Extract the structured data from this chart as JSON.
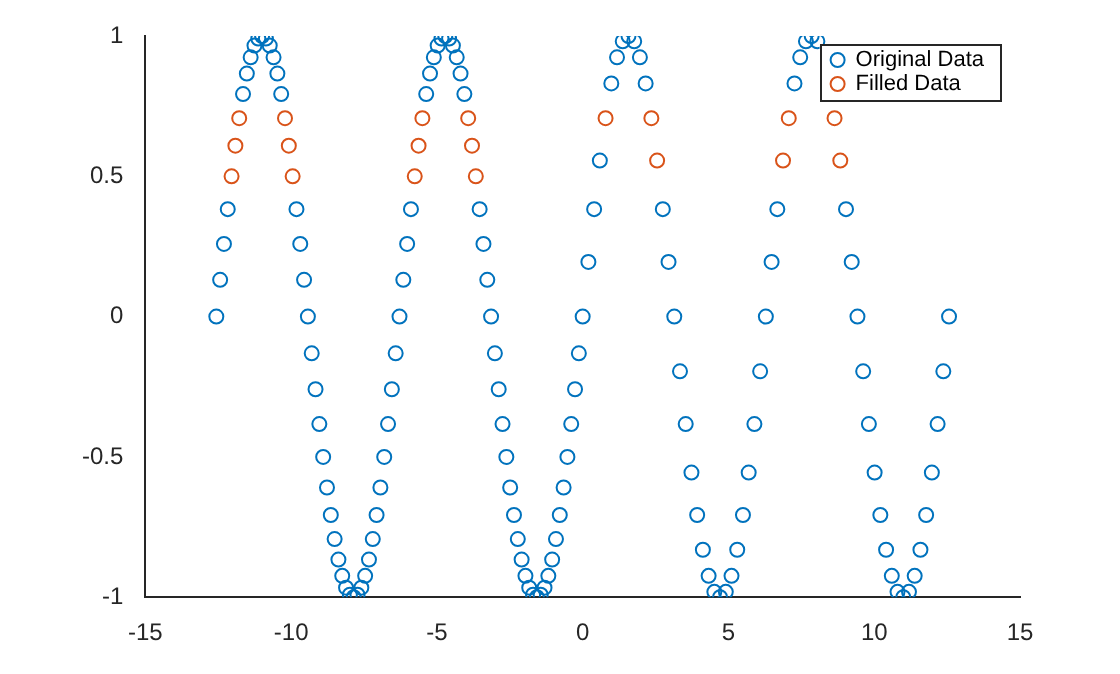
{
  "chart_data": {
    "type": "scatter",
    "xlim": [
      -15,
      15
    ],
    "ylim": [
      -1,
      1
    ],
    "xticks": [
      -15,
      -10,
      -5,
      0,
      5,
      10,
      15
    ],
    "yticks": [
      -1,
      -0.5,
      0,
      0.5,
      1
    ],
    "grid": false,
    "legend": "top right",
    "marker": "circle",
    "series": [
      {
        "name": "Original Data",
        "color": "#0072bd",
        "x": [
          -12.566,
          -12.435,
          -12.304,
          -12.174,
          -11.65,
          -11.519,
          -11.388,
          -11.257,
          -11.126,
          -10.996,
          -10.865,
          -10.734,
          -10.603,
          -10.472,
          -10.341,
          -9.817,
          -9.687,
          -9.556,
          -9.425,
          -9.294,
          -9.163,
          -9.032,
          -8.901,
          -8.77,
          -8.639,
          -8.508,
          -8.378,
          -8.247,
          -8.116,
          -7.985,
          -7.854,
          -7.723,
          -7.592,
          -7.461,
          -7.33,
          -7.199,
          -7.069,
          -6.938,
          -6.807,
          -6.676,
          -6.545,
          -6.414,
          -6.283,
          -6.152,
          -6.021,
          -5.89,
          -5.367,
          -5.236,
          -5.105,
          -4.974,
          -4.843,
          -4.712,
          -4.581,
          -4.451,
          -4.32,
          -4.189,
          -4.058,
          -3.534,
          -3.403,
          -3.272,
          -3.142,
          -3.011,
          -2.88,
          -2.749,
          -2.618,
          -2.487,
          -2.356,
          -2.225,
          -2.094,
          -1.963,
          -1.833,
          -1.702,
          -1.571,
          -1.44,
          -1.309,
          -1.178,
          -1.047,
          -0.916,
          -0.785,
          -0.654,
          -0.524,
          -0.393,
          -0.262,
          -0.131,
          0,
          0.196,
          0.393,
          0.589,
          0.982,
          1.178,
          1.374,
          1.571,
          1.767,
          1.963,
          2.16,
          2.749,
          2.945,
          3.142,
          3.338,
          3.534,
          3.731,
          3.927,
          4.123,
          4.32,
          4.516,
          4.712,
          4.909,
          5.105,
          5.301,
          5.498,
          5.694,
          5.89,
          6.087,
          6.283,
          6.48,
          6.676,
          7.265,
          7.461,
          7.658,
          7.854,
          8.05,
          8.247,
          8.443,
          9.032,
          9.228,
          9.425,
          9.621,
          9.817,
          10.014,
          10.21,
          10.407,
          10.603,
          10.799,
          10.996,
          11.192,
          11.388,
          11.585,
          11.781,
          11.977,
          12.174,
          12.37,
          12.566
        ],
        "values": [
          0,
          0.131,
          0.259,
          0.383,
          0.793,
          0.866,
          0.924,
          0.966,
          0.991,
          1,
          0.991,
          0.966,
          0.924,
          0.866,
          0.793,
          0.383,
          0.259,
          0.131,
          0,
          -0.131,
          -0.259,
          -0.383,
          -0.5,
          -0.609,
          -0.707,
          -0.793,
          -0.866,
          -0.924,
          -0.966,
          -0.991,
          -1,
          -0.991,
          -0.966,
          -0.924,
          -0.866,
          -0.793,
          -0.707,
          -0.609,
          -0.5,
          -0.383,
          -0.259,
          -0.131,
          0,
          0.131,
          0.259,
          0.383,
          0.793,
          0.866,
          0.924,
          0.966,
          0.991,
          1,
          0.991,
          0.966,
          0.924,
          0.866,
          0.793,
          0.383,
          0.259,
          0.131,
          0,
          -0.131,
          -0.259,
          -0.383,
          -0.5,
          -0.609,
          -0.707,
          -0.793,
          -0.866,
          -0.924,
          -0.966,
          -0.991,
          -1,
          -0.991,
          -0.966,
          -0.924,
          -0.866,
          -0.793,
          -0.707,
          -0.609,
          -0.5,
          -0.383,
          -0.259,
          -0.131,
          0,
          0.195,
          0.383,
          0.556,
          0.831,
          0.924,
          0.981,
          1,
          0.981,
          0.924,
          0.831,
          0.383,
          0.195,
          0,
          -0.195,
          -0.383,
          -0.556,
          -0.707,
          -0.831,
          -0.924,
          -0.981,
          -1,
          -0.981,
          -0.924,
          -0.831,
          -0.707,
          -0.556,
          -0.383,
          -0.195,
          0,
          0.195,
          0.383,
          0.831,
          0.924,
          0.981,
          1,
          0.981,
          null,
          null,
          0.383,
          0.195,
          0,
          -0.195,
          -0.383,
          -0.556,
          -0.707,
          -0.831,
          -0.924,
          -0.981,
          -1,
          -0.981,
          -0.924,
          -0.831,
          -0.707,
          -0.556,
          -0.383,
          -0.195,
          0
        ]
      },
      {
        "name": "Filled Data",
        "color": "#d95319",
        "x": [
          -12.043,
          -11.912,
          -11.781,
          -10.21,
          -10.079,
          -9.948,
          -5.76,
          -5.629,
          -5.498,
          -3.927,
          -3.796,
          -3.665,
          0.785,
          2.356,
          2.553,
          6.872,
          7.069,
          8.639,
          8.836
        ],
        "values": [
          0.5,
          0.609,
          0.707,
          0.707,
          0.609,
          0.5,
          0.5,
          0.609,
          0.707,
          0.707,
          0.609,
          0.5,
          0.707,
          0.707,
          0.556,
          0.556,
          0.707,
          0.707,
          0.556
        ]
      }
    ]
  }
}
